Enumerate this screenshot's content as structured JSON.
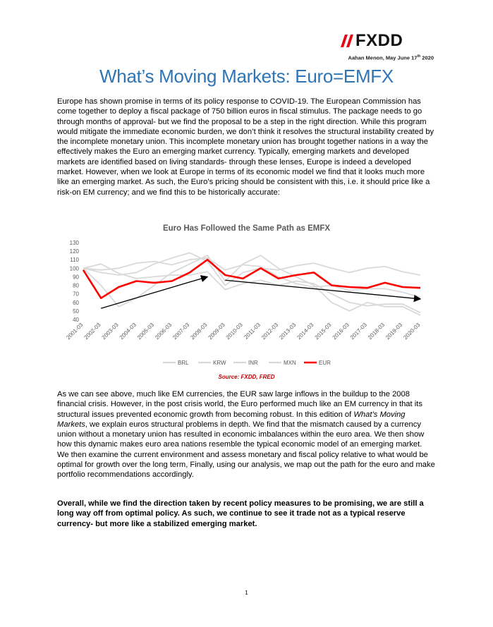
{
  "header": {
    "logo_text": "FXDD",
    "author_line": "Aahan Menon, May June 17",
    "author_sup": "th",
    "author_year": " 2020"
  },
  "title": "What’s Moving Markets: Euro=EMFX",
  "paragraph1": "Europe has shown promise in terms of its policy response to COVID-19. The European Commission has come together to deploy a fiscal package of 750 billion euros in fiscal stimulus. The package needs to go through months of approval- but we find the proposal to be a step in the right direction. While this program would mitigate the immediate economic burden, we don’t think it resolves the structural instability created by the incomplete monetary union.  This incomplete monetary union has brought together nations in a way the effectively makes the Euro an emerging market currency. Typically, emerging markets and developed markets are identified based on living standards- through these lenses, Europe is indeed a developed market. However, when we look at Europe in terms of its economic model we find that it looks much more like an emerging market. As such, the Euro’s pricing should be consistent with this, i.e. it should price like a risk-on EM currency; and we find this to be historically accurate:",
  "paragraph2": {
    "part1": "As we can see above, much like EM currencies, the EUR saw large inflows in the buildup to the 2008 financial crisis. However, in the post crisis world, the Euro performed much like an EM currency in that its structural issues prevented economic growth from becoming robust. In this edition of ",
    "italic": "What’s Moving Markets",
    "part2": ", we explain euros structural problems in depth. We find that the mismatch caused by a currency union without a monetary union has resulted in economic imbalances within the euro area. We then show how this dynamic makes euro area nations resemble the typical economic model of an emerging market. We then examine the current environment and assess monetary and fiscal policy relative to what would be optimal for growth over the long term, Finally, using our analysis, we map out the path for the euro and make portfolio recommendations accordingly."
  },
  "paragraph3": "Overall, while we find the direction taken by recent policy measures to be promising, we are still a long way off from optimal policy. As such, we continue to see it trade not as a typical reserve currency- but more like a stabilized emerging market.",
  "source": "Source: FXDD, FRED",
  "page_number": "1",
  "colors": {
    "title_blue": "#2e75b6",
    "eur_red": "#ff0000",
    "em_gray": "#d9d9d9",
    "logo_red": "#e30613"
  },
  "chart_data": {
    "type": "line",
    "title": "Euro Has Followed the Same Path as EMFX",
    "ylim": [
      40,
      130
    ],
    "yticks": [
      "40",
      "50",
      "60",
      "70",
      "80",
      "90",
      "100",
      "110",
      "120",
      "130"
    ],
    "categories": [
      "2001-03",
      "2002-03",
      "2003-03",
      "2004-03",
      "2005-03",
      "2006-03",
      "2007-03",
      "2008-03",
      "2009-03",
      "2010-03",
      "2011-03",
      "2012-03",
      "2013-03",
      "2014-03",
      "2015-03",
      "2016-03",
      "2017-03",
      "2018-03",
      "2019-03",
      "2020-03"
    ],
    "legend_position": "bottom",
    "grid": false,
    "series": [
      {
        "name": "BRL",
        "color": "#d9d9d9",
        "values": [
          100,
          80,
          55,
          65,
          80,
          95,
          105,
          115,
          85,
          105,
          115,
          100,
          90,
          80,
          60,
          50,
          60,
          55,
          55,
          45
        ]
      },
      {
        "name": "KRW",
        "color": "#d9d9d9",
        "values": [
          100,
          95,
          92,
          95,
          105,
          112,
          118,
          108,
          80,
          95,
          100,
          98,
          103,
          106,
          100,
          95,
          100,
          102,
          96,
          92
        ]
      },
      {
        "name": "INR",
        "color": "#d9d9d9",
        "values": [
          100,
          98,
          100,
          106,
          108,
          104,
          110,
          112,
          98,
          104,
          102,
          90,
          82,
          78,
          80,
          74,
          76,
          76,
          72,
          66
        ]
      },
      {
        "name": "MXN",
        "color": "#d9d9d9",
        "values": [
          100,
          105,
          94,
          88,
          90,
          92,
          92,
          96,
          75,
          82,
          86,
          80,
          85,
          82,
          70,
          60,
          56,
          58,
          58,
          48
        ]
      },
      {
        "name": "EUR",
        "color": "#ff0000",
        "values": [
          98,
          65,
          78,
          85,
          83,
          85,
          95,
          110,
          92,
          88,
          100,
          88,
          92,
          95,
          80,
          78,
          77,
          83,
          78,
          77
        ]
      }
    ],
    "annotations": [
      {
        "type": "arrow",
        "from": [
          "2002-03",
          53
        ],
        "to": [
          "2008-03",
          90
        ]
      },
      {
        "type": "arrow",
        "from": [
          "2009-03",
          86
        ],
        "to": [
          "2020-03",
          64
        ]
      }
    ]
  }
}
